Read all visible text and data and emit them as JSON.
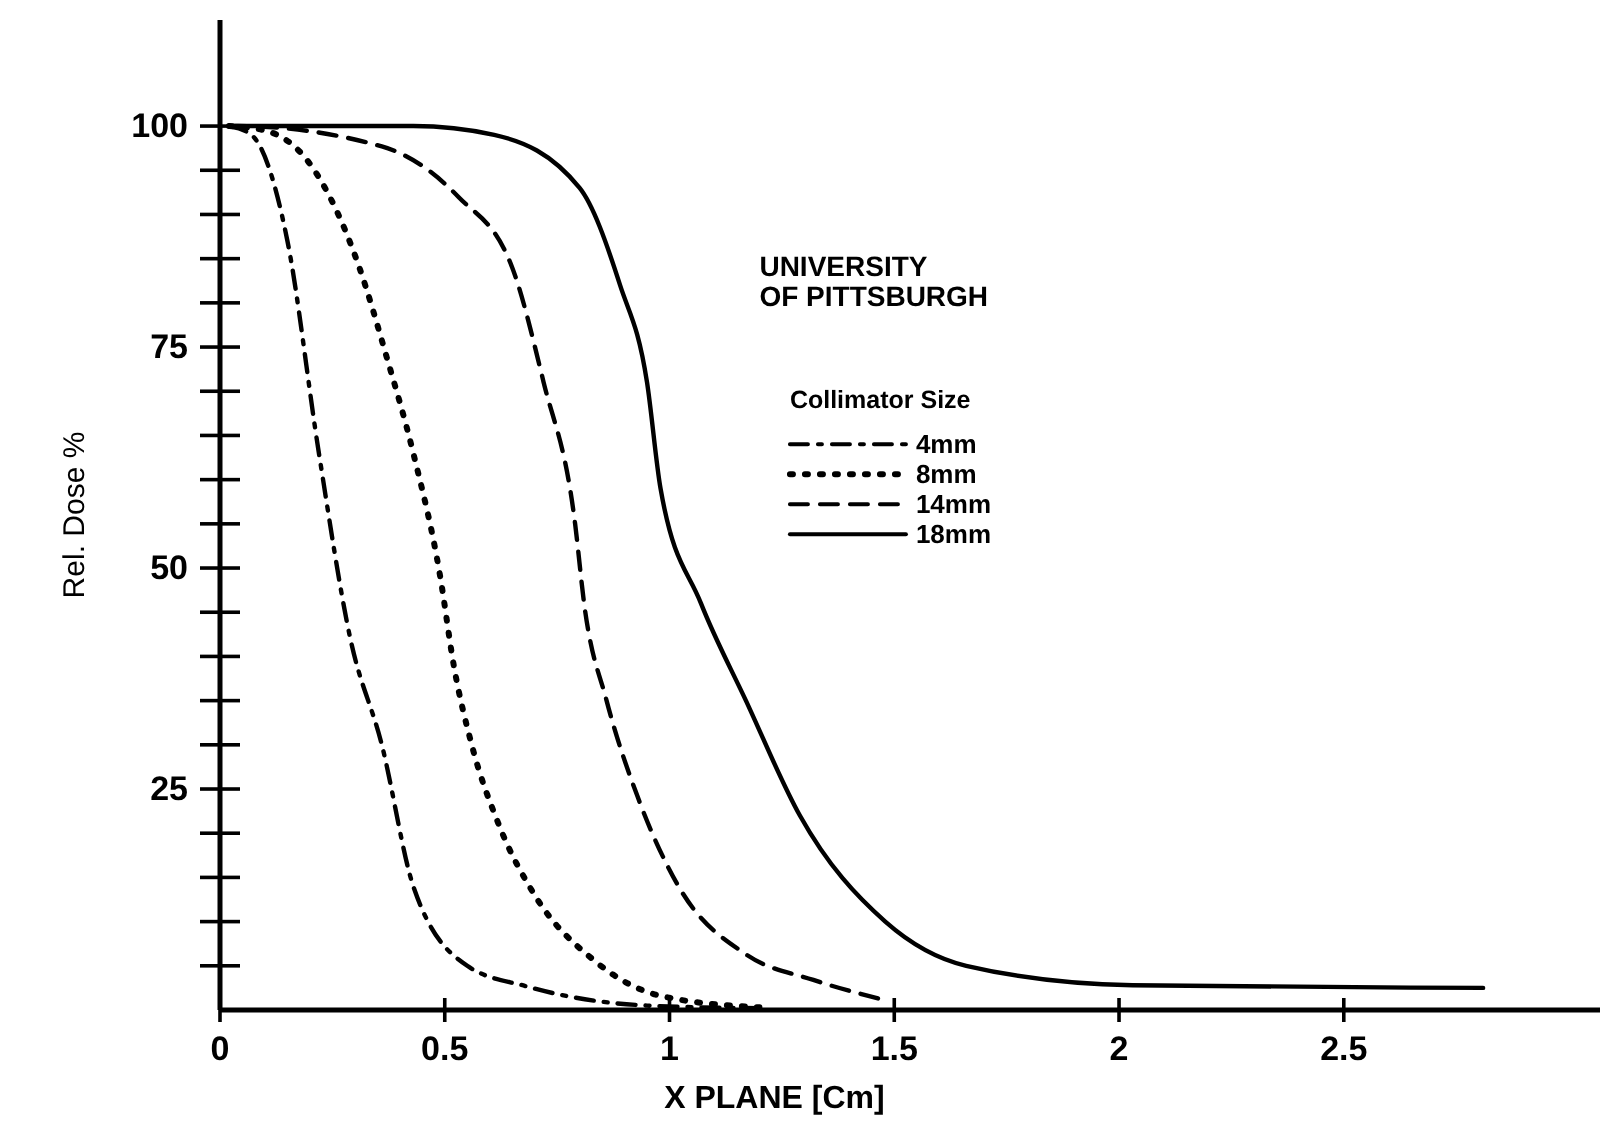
{
  "chart_data": {
    "type": "line",
    "xlabel": "X PLANE [Cm]",
    "ylabel": "Rel. Dose %",
    "legend_title": "Collimator Size",
    "legend": "right",
    "marker": "none",
    "grid": false,
    "annotations": [
      "UNIVERSITY\nOF PITTSBURGH"
    ],
    "xlim": [
      0,
      3.07
    ],
    "ylim": [
      0,
      112
    ],
    "xticks": [
      0,
      0.5,
      1.0,
      1.5,
      2.0,
      2.5
    ],
    "yticks": [
      {
        "value": 5,
        "label": null
      },
      {
        "value": 10,
        "label": null
      },
      {
        "value": 15,
        "label": null
      },
      {
        "value": 20,
        "label": null
      },
      25,
      {
        "value": 30,
        "label": null
      },
      {
        "value": 35,
        "label": null
      },
      {
        "value": 40,
        "label": null
      },
      {
        "value": 45,
        "label": null
      },
      50,
      {
        "value": 55,
        "label": null
      },
      {
        "value": 60,
        "label": null
      },
      {
        "value": 65,
        "label": null
      },
      {
        "value": 70,
        "label": null
      },
      75,
      {
        "value": 80,
        "label": null
      },
      {
        "value": 85,
        "label": null
      },
      {
        "value": 90,
        "label": null
      },
      {
        "value": 95,
        "label": null
      },
      100
    ],
    "series": [
      {
        "name": "4mm",
        "color": "#000000",
        "line_style": "dashdot",
        "x": [
          0.02,
          0.07,
          0.15,
          0.22,
          0.29,
          0.36,
          0.43,
          0.55,
          0.68,
          0.95,
          1.2
        ],
        "values": [
          100,
          99,
          87,
          63,
          42,
          30,
          14,
          5,
          2.7,
          0.5,
          0.2
        ]
      },
      {
        "name": "8mm",
        "color": "#000000",
        "line_style": "dotted",
        "x": [
          0.02,
          0.1,
          0.21,
          0.31,
          0.37,
          0.43,
          0.49,
          0.52,
          0.56,
          0.62,
          0.7,
          0.83,
          0.98,
          1.2
        ],
        "values": [
          100,
          99.5,
          95,
          84,
          74,
          63,
          49,
          39,
          30,
          21,
          13,
          5.7,
          1.6,
          0.3
        ]
      },
      {
        "name": "14mm",
        "color": "#000000",
        "line_style": "dashed",
        "x": [
          0.02,
          0.04,
          0.36,
          0.53,
          0.65,
          0.72,
          0.79,
          0.81,
          0.86,
          0.93,
          1.02,
          1.17,
          1.32,
          1.48
        ],
        "values": [
          100,
          100,
          97.7,
          92,
          84,
          71,
          55,
          46,
          35,
          24,
          14,
          6.3,
          3.4,
          1.1
        ]
      },
      {
        "name": "18mm",
        "color": "#000000",
        "line_style": "solid",
        "x": [
          0.02,
          0.43,
          0.61,
          0.8,
          0.89,
          0.95,
          0.98,
          1.07,
          1.17,
          1.29,
          1.48,
          1.66,
          2.03,
          2.81
        ],
        "values": [
          100,
          100,
          99,
          93,
          82,
          71,
          59,
          46,
          35,
          22,
          10,
          5,
          2.8,
          2.5
        ]
      }
    ]
  }
}
